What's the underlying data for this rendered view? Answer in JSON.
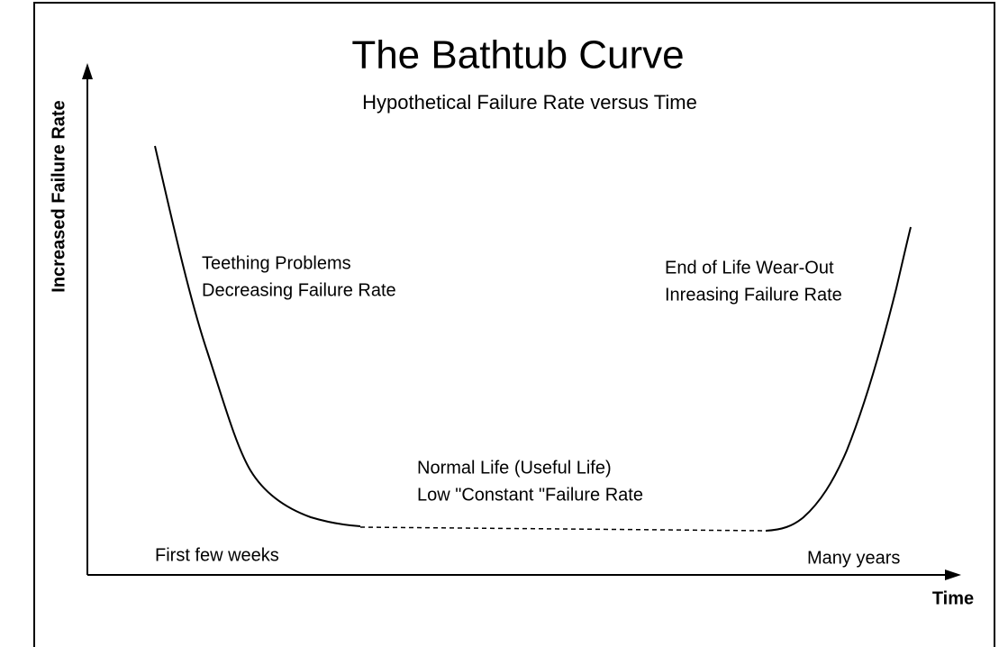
{
  "title": "The Bathtub Curve",
  "subtitle": "Hypothetical Failure Rate versus Time",
  "y_axis_label": "Increased Failure Rate",
  "x_axis_label": "Time",
  "annotations": {
    "early": [
      "Teething Problems",
      "Decreasing Failure Rate"
    ],
    "normal": [
      "Normal Life (Useful Life)",
      "Low \"Constant \"Failure Rate"
    ],
    "wear_out": [
      "End of Life Wear-Out",
      "Inreasing Failure Rate"
    ],
    "start": "First few weeks",
    "end": "Many years"
  }
}
